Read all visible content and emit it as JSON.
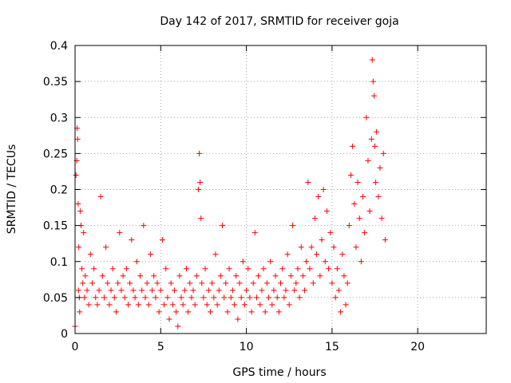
{
  "chart_data": {
    "type": "scatter",
    "title": "Day 142 of 2017, SRMTID for receiver goja",
    "xlabel": "GPS time / hours",
    "ylabel": "SRMTID / TECUs",
    "xlim": [
      0,
      24
    ],
    "ylim": [
      0,
      0.4
    ],
    "x_ticks": [
      "0",
      "5",
      "10",
      "15",
      "20"
    ],
    "y_ticks": [
      "0",
      "0.05",
      "0.1",
      "0.15",
      "0.2",
      "0.25",
      "0.3",
      "0.35",
      "0.4"
    ],
    "grid": true,
    "legend": "none",
    "marker": "+",
    "color": "#ff0000",
    "series": [
      {
        "x": [
          0.0,
          0.05,
          0.1,
          0.12,
          0.15,
          0.18,
          0.2,
          0.22,
          0.25,
          0.27,
          0.3,
          0.35,
          0.4,
          0.45,
          0.5,
          0.55,
          0.6,
          0.7,
          0.8,
          0.9,
          1.0,
          1.1,
          1.2,
          1.3,
          1.4,
          1.5,
          1.6,
          1.7,
          1.8,
          1.9,
          2.0,
          2.1,
          2.2,
          2.3,
          2.4,
          2.5,
          2.6,
          2.7,
          2.8,
          2.9,
          3.0,
          3.1,
          3.2,
          3.3,
          3.4,
          3.5,
          3.6,
          3.7,
          3.8,
          3.9,
          4.0,
          4.1,
          4.2,
          4.3,
          4.4,
          4.5,
          4.6,
          4.7,
          4.8,
          4.9,
          5.0,
          5.1,
          5.2,
          5.3,
          5.4,
          5.5,
          5.6,
          5.7,
          5.8,
          5.9,
          6.0,
          6.1,
          6.2,
          6.3,
          6.4,
          6.5,
          6.6,
          6.7,
          6.8,
          6.9,
          7.0,
          7.1,
          7.2,
          7.25,
          7.3,
          7.35,
          7.4,
          7.5,
          7.6,
          7.7,
          7.8,
          7.9,
          8.0,
          8.1,
          8.2,
          8.3,
          8.4,
          8.5,
          8.6,
          8.7,
          8.8,
          8.9,
          9.0,
          9.1,
          9.2,
          9.3,
          9.4,
          9.5,
          9.6,
          9.7,
          9.8,
          9.9,
          10.0,
          10.1,
          10.2,
          10.3,
          10.4,
          10.5,
          10.6,
          10.7,
          10.8,
          10.9,
          11.0,
          11.1,
          11.2,
          11.3,
          11.4,
          11.5,
          11.6,
          11.7,
          11.8,
          11.9,
          12.0,
          12.1,
          12.2,
          12.3,
          12.4,
          12.5,
          12.6,
          12.7,
          12.8,
          12.9,
          13.0,
          13.1,
          13.2,
          13.3,
          13.4,
          13.5,
          13.6,
          13.7,
          13.8,
          13.9,
          14.0,
          14.1,
          14.2,
          14.3,
          14.4,
          14.5,
          14.6,
          14.7,
          14.8,
          14.9,
          15.0,
          15.1,
          15.2,
          15.3,
          15.4,
          15.5,
          15.6,
          15.7,
          15.8,
          15.9,
          16.0,
          16.1,
          16.2,
          16.3,
          16.4,
          16.5,
          16.6,
          16.7,
          16.8,
          16.9,
          17.0,
          17.1,
          17.2,
          17.3,
          17.35,
          17.4,
          17.45,
          17.5,
          17.55,
          17.6,
          17.7,
          17.8,
          17.9,
          18.0,
          18.1
        ],
        "y": [
          0.01,
          0.22,
          0.24,
          0.285,
          0.27,
          0.18,
          0.06,
          0.12,
          0.05,
          0.03,
          0.17,
          0.15,
          0.09,
          0.07,
          0.14,
          0.05,
          0.08,
          0.06,
          0.04,
          0.11,
          0.07,
          0.09,
          0.05,
          0.04,
          0.06,
          0.19,
          0.08,
          0.05,
          0.12,
          0.07,
          0.04,
          0.06,
          0.09,
          0.05,
          0.03,
          0.07,
          0.14,
          0.06,
          0.08,
          0.05,
          0.09,
          0.04,
          0.07,
          0.13,
          0.06,
          0.05,
          0.1,
          0.04,
          0.08,
          0.06,
          0.15,
          0.05,
          0.07,
          0.04,
          0.11,
          0.06,
          0.08,
          0.05,
          0.07,
          0.03,
          0.06,
          0.13,
          0.04,
          0.09,
          0.05,
          0.02,
          0.07,
          0.04,
          0.06,
          0.03,
          0.01,
          0.08,
          0.05,
          0.04,
          0.06,
          0.09,
          0.03,
          0.07,
          0.05,
          0.06,
          0.04,
          0.08,
          0.2,
          0.25,
          0.21,
          0.16,
          0.07,
          0.05,
          0.09,
          0.04,
          0.06,
          0.03,
          0.07,
          0.05,
          0.11,
          0.04,
          0.06,
          0.08,
          0.15,
          0.05,
          0.07,
          0.03,
          0.09,
          0.05,
          0.06,
          0.04,
          0.08,
          0.02,
          0.07,
          0.05,
          0.1,
          0.04,
          0.06,
          0.09,
          0.05,
          0.03,
          0.07,
          0.14,
          0.05,
          0.08,
          0.04,
          0.06,
          0.09,
          0.03,
          0.07,
          0.05,
          0.1,
          0.04,
          0.06,
          0.08,
          0.05,
          0.03,
          0.07,
          0.09,
          0.05,
          0.06,
          0.11,
          0.04,
          0.08,
          0.15,
          0.06,
          0.07,
          0.09,
          0.05,
          0.12,
          0.08,
          0.06,
          0.1,
          0.21,
          0.09,
          0.12,
          0.07,
          0.16,
          0.11,
          0.19,
          0.08,
          0.13,
          0.2,
          0.1,
          0.17,
          0.09,
          0.14,
          0.07,
          0.12,
          0.05,
          0.09,
          0.06,
          0.03,
          0.11,
          0.08,
          0.04,
          0.07,
          0.15,
          0.22,
          0.26,
          0.18,
          0.12,
          0.21,
          0.16,
          0.1,
          0.19,
          0.14,
          0.3,
          0.24,
          0.17,
          0.27,
          0.38,
          0.35,
          0.33,
          0.26,
          0.21,
          0.28,
          0.19,
          0.23,
          0.16,
          0.25,
          0.13
        ]
      }
    ]
  }
}
